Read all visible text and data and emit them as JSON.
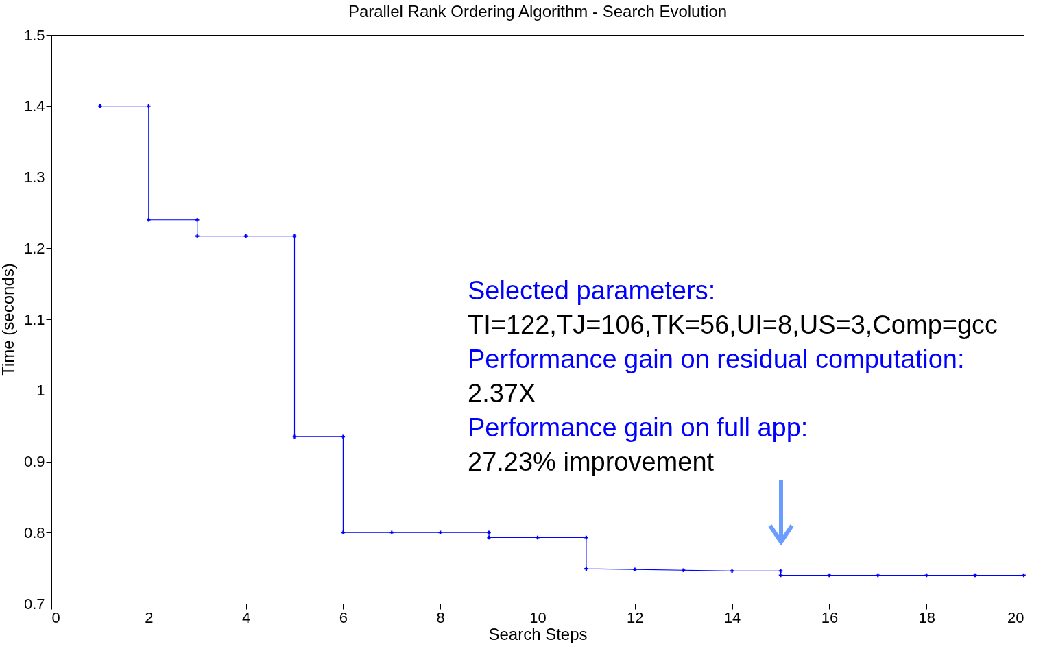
{
  "chart_data": {
    "type": "line",
    "title": "Parallel Rank Ordering Algorithm - Search Evolution",
    "xlabel": "Search Steps",
    "ylabel": "Time (seconds)",
    "x": [
      1,
      2,
      2,
      3,
      3,
      4,
      5,
      5,
      6,
      6,
      7,
      8,
      9,
      9,
      10,
      11,
      11,
      12,
      13,
      14,
      15,
      15,
      16,
      17,
      18,
      19,
      20
    ],
    "series": [
      {
        "color": "#0000ff",
        "values": [
          1.4,
          1.4,
          1.24,
          1.24,
          1.217,
          1.217,
          1.217,
          0.935,
          0.935,
          0.8,
          0.8,
          0.8,
          0.8,
          0.793,
          0.793,
          0.793,
          0.749,
          0.748,
          0.747,
          0.746,
          0.746,
          0.74,
          0.74,
          0.74,
          0.74,
          0.74,
          0.74
        ]
      }
    ],
    "xlim": [
      0,
      20
    ],
    "xticks": [
      0,
      2,
      4,
      6,
      8,
      10,
      12,
      14,
      16,
      18,
      20
    ],
    "ylim": [
      0.7,
      1.5
    ],
    "yticks": [
      0.7,
      0.8,
      0.9,
      1,
      1.1,
      1.2,
      1.3,
      1.4,
      1.5
    ],
    "marker": "cross",
    "line_style": "solid",
    "grid": false,
    "annotations": [
      "Selected parameters:",
      "TI=122,TJ=106,TK=56,UI=8,US=3,Comp=gcc",
      "Performance gain on residual computation:",
      "2.37X",
      "Performance gain on full app:",
      "27.23% improvement"
    ]
  }
}
